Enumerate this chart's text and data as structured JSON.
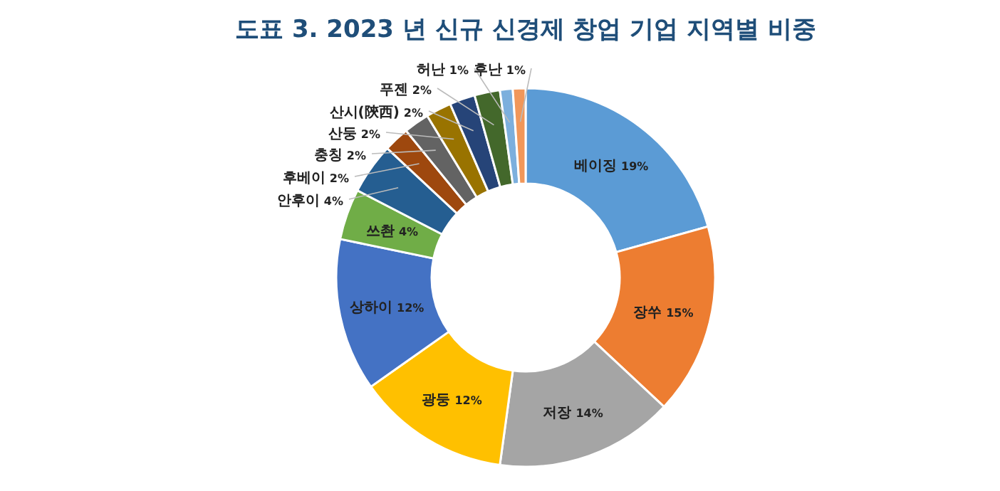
{
  "chart_data": {
    "type": "donut",
    "title": "도표 3. 2023 년 신규 신경제 창업 기업 지역별 비중",
    "categories": [
      "베이징",
      "장쑤",
      "저장",
      "광둥",
      "상하이",
      "쓰촨",
      "안후이",
      "후베이",
      "충칭",
      "산둥",
      "산시(陝西)",
      "푸젠",
      "허난",
      "후난"
    ],
    "values": [
      19,
      15,
      14,
      12,
      12,
      4,
      4,
      2,
      2,
      2,
      2,
      2,
      1,
      1
    ],
    "value_labels": [
      "19%",
      "15%",
      "14%",
      "12%",
      "12%",
      "4%",
      "4%",
      "2%",
      "2%",
      "2%",
      "2%",
      "2%",
      "1%",
      "1%"
    ],
    "colors": [
      "#5b9bd5",
      "#ed7d31",
      "#a5a5a5",
      "#ffc000",
      "#4472c4",
      "#70ad47",
      "#255e91",
      "#9e480e",
      "#636363",
      "#997300",
      "#264478",
      "#43682b",
      "#7cafdd",
      "#f1975a"
    ]
  }
}
